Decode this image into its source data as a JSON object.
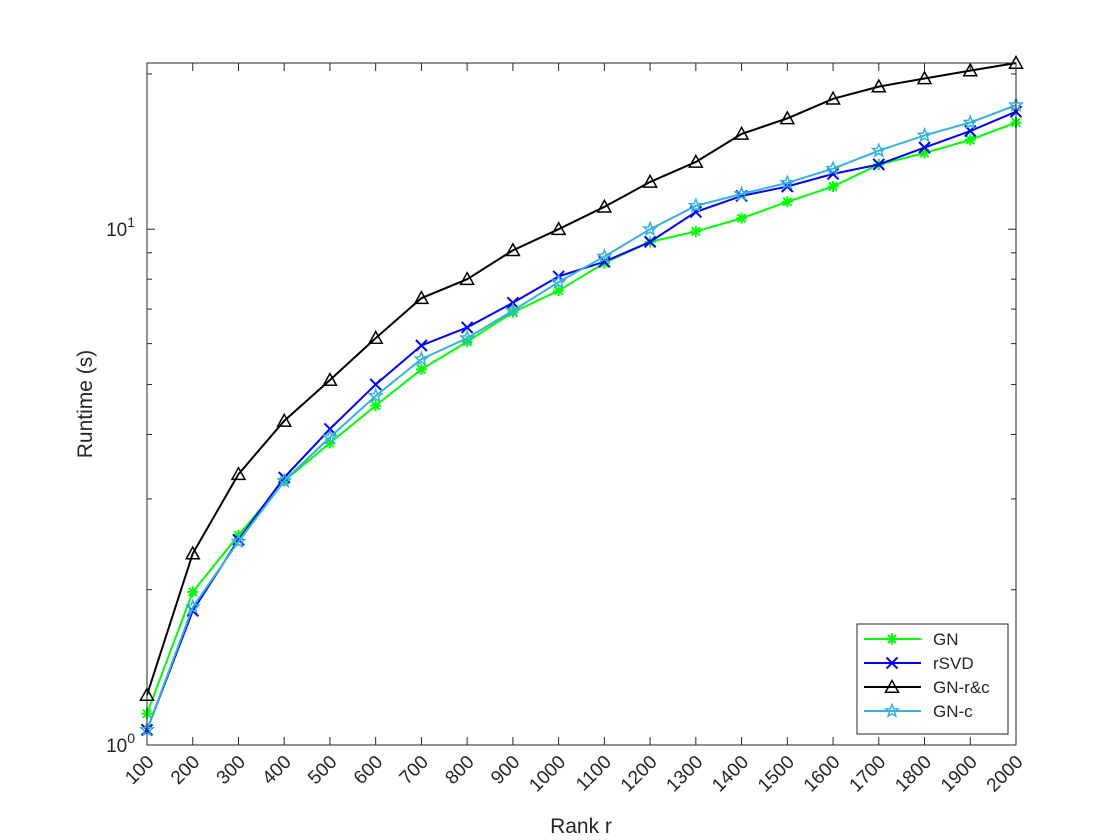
{
  "chart_data": {
    "type": "line",
    "xlabel": "Rank r",
    "ylabel": "Runtime (s)",
    "yscale": "log",
    "x": [
      100,
      200,
      300,
      400,
      500,
      600,
      700,
      800,
      900,
      1000,
      1100,
      1200,
      1300,
      1400,
      1500,
      1600,
      1700,
      1800,
      1900,
      2000
    ],
    "xlim": [
      100,
      2000
    ],
    "ylim": [
      1,
      21
    ],
    "y_ticks": [
      {
        "value": 1,
        "base": "10",
        "exp": "0"
      },
      {
        "value": 10,
        "base": "10",
        "exp": "1"
      }
    ],
    "grid": false,
    "legend_position": "bottom-right",
    "series": [
      {
        "name": "GN",
        "color": "#00ff00",
        "marker": "asterisk",
        "values": [
          1.15,
          1.98,
          2.55,
          3.25,
          3.85,
          4.55,
          5.35,
          6.05,
          6.9,
          7.6,
          8.6,
          9.45,
          9.9,
          10.5,
          11.3,
          12.1,
          13.35,
          14.05,
          14.9,
          16.1
        ]
      },
      {
        "name": "rSVD",
        "color": "#0000ff",
        "marker": "x",
        "values": [
          1.07,
          1.82,
          2.5,
          3.3,
          4.1,
          5.0,
          5.95,
          6.45,
          7.2,
          8.1,
          8.65,
          9.45,
          10.8,
          11.6,
          12.1,
          12.8,
          13.35,
          14.4,
          15.5,
          16.9
        ]
      },
      {
        "name": "GN-r&c",
        "color": "#000000",
        "marker": "triangle",
        "values": [
          1.25,
          2.35,
          3.35,
          4.25,
          5.1,
          6.15,
          7.35,
          8.0,
          9.1,
          10.0,
          11.05,
          12.35,
          13.5,
          15.3,
          16.4,
          17.9,
          18.9,
          19.6,
          20.3,
          21.0
        ]
      },
      {
        "name": "GN-c",
        "color": "#33b2e0",
        "marker": "star",
        "values": [
          1.07,
          1.85,
          2.48,
          3.25,
          3.95,
          4.75,
          5.6,
          6.15,
          6.95,
          7.9,
          8.85,
          10.0,
          11.1,
          11.7,
          12.3,
          13.1,
          14.2,
          15.2,
          16.1,
          17.4
        ]
      }
    ]
  }
}
